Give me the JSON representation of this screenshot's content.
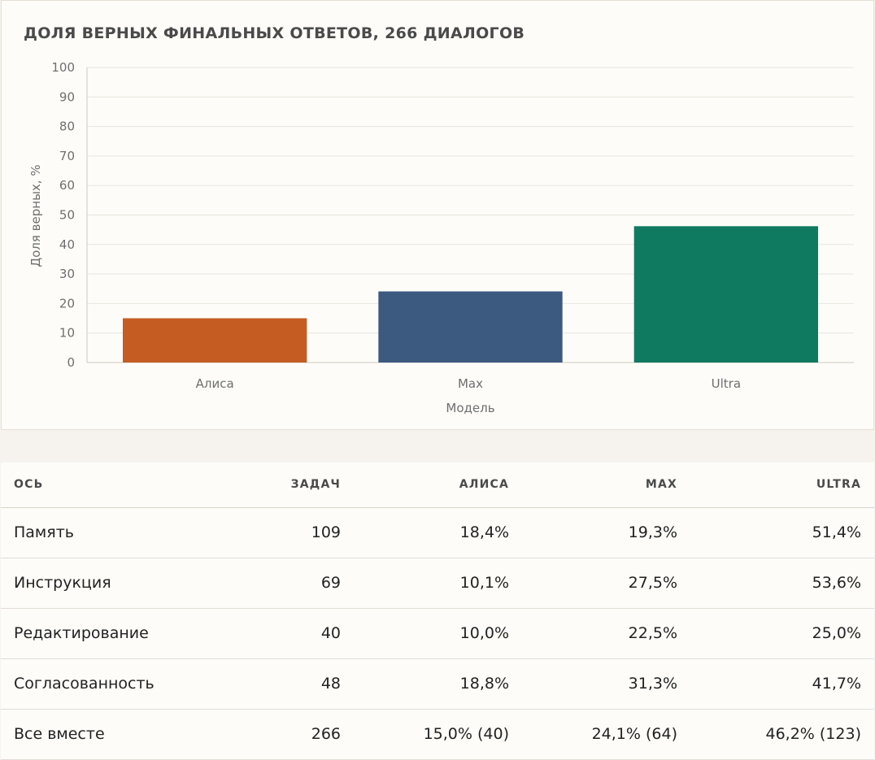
{
  "chart_data": {
    "type": "bar",
    "title": "ДОЛЯ ВЕРНЫХ ФИНАЛЬНЫХ ОТВЕТОВ, 266 ДИАЛОГОВ",
    "xlabel": "Модель",
    "ylabel": "Доля верных, %",
    "categories": [
      "Алиса",
      "Max",
      "Ultra"
    ],
    "values": [
      15.0,
      24.1,
      46.2
    ],
    "colors": [
      "#c55c22",
      "#3c5a80",
      "#0f7a60"
    ],
    "ylim": [
      0,
      100
    ],
    "yticks": [
      0,
      10,
      20,
      30,
      40,
      50,
      60,
      70,
      80,
      90,
      100
    ],
    "grid": true
  },
  "table": {
    "headers": [
      "ОСЬ",
      "ЗАДАЧ",
      "АЛИСА",
      "MAX",
      "ULTRA"
    ],
    "rows": [
      [
        "Память",
        "109",
        "18,4%",
        "19,3%",
        "51,4%"
      ],
      [
        "Инструкция",
        "69",
        "10,1%",
        "27,5%",
        "53,6%"
      ],
      [
        "Редактирование",
        "40",
        "10,0%",
        "22,5%",
        "25,0%"
      ],
      [
        "Согласованность",
        "48",
        "18,8%",
        "31,3%",
        "41,7%"
      ],
      [
        "Все вместе",
        "266",
        "15,0% (40)",
        "24,1% (64)",
        "46,2% (123)"
      ]
    ]
  }
}
